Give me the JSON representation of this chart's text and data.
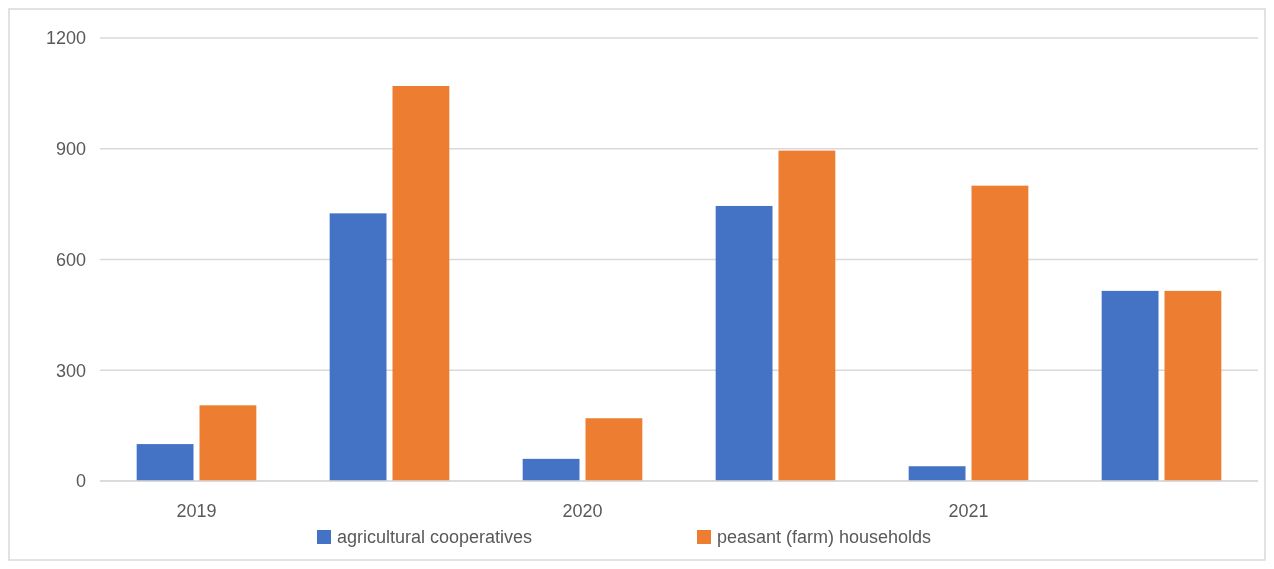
{
  "chart_data": {
    "type": "bar",
    "categories": [
      "2019",
      null,
      "2020",
      null,
      "2021",
      null
    ],
    "series": [
      {
        "name": "agricultural cooperatives",
        "color": "#4472c4",
        "values": [
          100,
          725,
          60,
          745,
          40,
          515
        ]
      },
      {
        "name": "peasant (farm) households",
        "color": "#ed7d31",
        "values": [
          205,
          1070,
          170,
          895,
          800,
          515
        ]
      }
    ],
    "ylim": [
      0,
      1200
    ],
    "yticks": [
      0,
      300,
      600,
      900,
      1200
    ],
    "grid": "y",
    "legend": "bottom"
  }
}
